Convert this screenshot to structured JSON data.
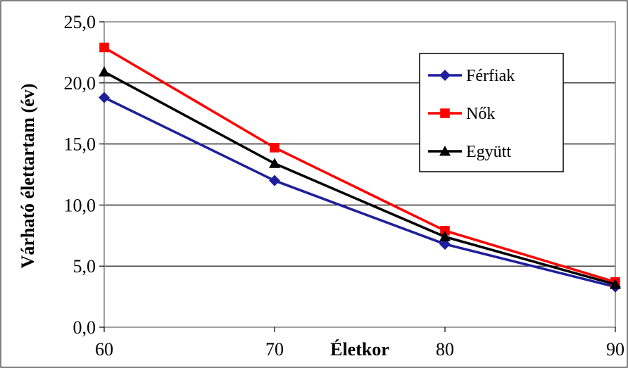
{
  "chart_data": {
    "type": "line",
    "title": "",
    "xlabel": "Életkor",
    "ylabel": "Várható élettartam (év)",
    "x": [
      60,
      70,
      80,
      90
    ],
    "xticks": [
      "60",
      "70",
      "80",
      "90"
    ],
    "ylim": [
      0,
      25
    ],
    "yticks": [
      "0,0",
      "5,0",
      "10,0",
      "15,0",
      "20,0",
      "25,0"
    ],
    "grid": "horizontal",
    "legend_position": "top-right",
    "series": [
      {
        "name": "Férfiak",
        "color": "#1f1f9c",
        "marker": "diamond",
        "values": [
          18.8,
          12.0,
          6.8,
          3.3
        ]
      },
      {
        "name": "Nők",
        "color": "#ff0000",
        "marker": "square",
        "values": [
          22.9,
          14.7,
          7.9,
          3.7
        ]
      },
      {
        "name": "Együtt",
        "color": "#000000",
        "marker": "triangle",
        "values": [
          20.9,
          13.4,
          7.4,
          3.5
        ]
      }
    ]
  }
}
